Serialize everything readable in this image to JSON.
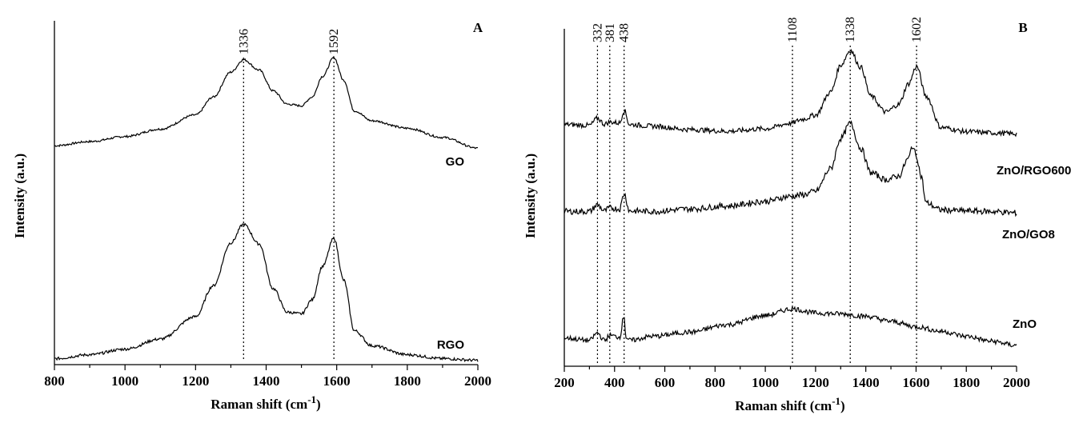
{
  "chart_data": [
    {
      "type": "line",
      "panel": "A",
      "xlabel": "Raman shift (cm-1)",
      "xlabel_main": "Raman shift (cm",
      "xlabel_sup": "-1",
      "xlabel_end": ")",
      "ylabel": "Intensity (a.u.)",
      "xlim": [
        800,
        2000
      ],
      "xticks": [
        "800",
        "1000",
        "1200",
        "1400",
        "1600",
        "1800",
        "2000"
      ],
      "peaks": [
        {
          "x": 1336,
          "label": "1336"
        },
        {
          "x": 1592,
          "label": "1592"
        }
      ],
      "series": [
        {
          "name": "GO",
          "x": [
            800,
            900,
            1000,
            1100,
            1200,
            1250,
            1300,
            1336,
            1380,
            1420,
            1460,
            1500,
            1530,
            1560,
            1592,
            1620,
            1650,
            1700,
            1800,
            1900,
            2000
          ],
          "y": [
            0.88,
            0.98,
            1.1,
            1.28,
            1.62,
            2.05,
            2.65,
            2.95,
            2.7,
            2.2,
            1.88,
            1.84,
            2.05,
            2.55,
            3.0,
            2.45,
            1.72,
            1.48,
            1.3,
            1.08,
            0.82
          ]
        },
        {
          "name": "RGO",
          "x": [
            800,
            900,
            1000,
            1100,
            1200,
            1250,
            1300,
            1336,
            1380,
            1420,
            1460,
            1500,
            1530,
            1560,
            1592,
            1620,
            1650,
            1700,
            1800,
            1900,
            2000
          ],
          "y": [
            0.05,
            0.12,
            0.22,
            0.4,
            0.8,
            1.35,
            2.12,
            2.45,
            2.1,
            1.3,
            0.88,
            0.85,
            1.1,
            1.7,
            2.2,
            1.45,
            0.55,
            0.28,
            0.12,
            0.05,
            0.02
          ]
        }
      ]
    },
    {
      "type": "line",
      "panel": "B",
      "xlabel": "Raman shift (cm-1)",
      "xlabel_main": "Raman shift (cm",
      "xlabel_sup": "-1",
      "xlabel_end": ")",
      "ylabel": "Intensity (a.u.)",
      "xlim": [
        200,
        2000
      ],
      "xticks": [
        "200",
        "400",
        "600",
        "800",
        "1000",
        "1200",
        "1400",
        "1600",
        "1800",
        "2000"
      ],
      "peaks": [
        {
          "x": 332,
          "label": "332"
        },
        {
          "x": 381,
          "label": "381"
        },
        {
          "x": 438,
          "label": "438"
        },
        {
          "x": 1108,
          "label": "1108"
        },
        {
          "x": 1338,
          "label": "1338"
        },
        {
          "x": 1602,
          "label": "1602"
        }
      ],
      "series": [
        {
          "name": "ZnO/RGO600",
          "x": [
            200,
            300,
            332,
            360,
            381,
            420,
            438,
            460,
            550,
            700,
            850,
            1000,
            1100,
            1150,
            1200,
            1260,
            1300,
            1338,
            1380,
            1420,
            1480,
            1530,
            1570,
            1602,
            1640,
            1700,
            1800,
            1900,
            2000
          ],
          "y": [
            1.62,
            1.6,
            1.77,
            1.63,
            1.68,
            1.66,
            1.96,
            1.62,
            1.58,
            1.5,
            1.46,
            1.52,
            1.65,
            1.75,
            1.85,
            2.4,
            3.05,
            3.4,
            3.0,
            2.3,
            1.92,
            2.1,
            2.6,
            3.02,
            2.3,
            1.55,
            1.45,
            1.42,
            1.4
          ]
        },
        {
          "name": "ZnO/GO8",
          "x": [
            200,
            300,
            332,
            360,
            381,
            420,
            438,
            460,
            550,
            700,
            850,
            1000,
            1100,
            1150,
            1200,
            1260,
            1300,
            1338,
            1380,
            1420,
            1480,
            1530,
            1570,
            1585,
            1602,
            1620,
            1640,
            1700,
            1800,
            1900,
            2000
          ],
          "y": [
            0.85,
            0.85,
            0.98,
            0.86,
            0.92,
            0.9,
            1.2,
            0.86,
            0.85,
            0.9,
            0.96,
            1.05,
            1.15,
            1.18,
            1.25,
            1.7,
            2.3,
            2.6,
            2.1,
            1.62,
            1.48,
            1.55,
            1.9,
            2.15,
            1.95,
            1.55,
            1.02,
            0.88,
            0.86,
            0.85,
            0.82
          ]
        },
        {
          "name": "ZnO",
          "x": [
            200,
            300,
            332,
            360,
            381,
            420,
            438,
            445,
            460,
            550,
            700,
            850,
            1000,
            1108,
            1200,
            1300,
            1400,
            1500,
            1600,
            1700,
            1800,
            1900,
            2000
          ],
          "y": [
            0.18,
            0.12,
            0.3,
            0.12,
            0.24,
            0.2,
            0.72,
            0.2,
            0.12,
            0.22,
            0.32,
            0.5,
            0.72,
            0.88,
            0.78,
            0.76,
            0.7,
            0.58,
            0.45,
            0.34,
            0.22,
            0.1,
            0.0
          ]
        }
      ]
    }
  ]
}
